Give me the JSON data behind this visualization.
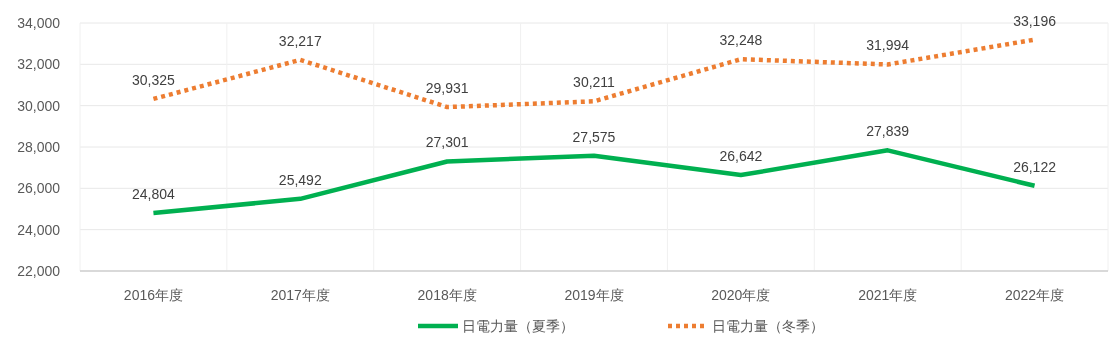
{
  "chart_data": {
    "type": "line",
    "categories": [
      "2016年度",
      "2017年度",
      "2018年度",
      "2019年度",
      "2020年度",
      "2021年度",
      "2022年度"
    ],
    "series": [
      {
        "name": "日電力量（夏季）",
        "color": "#00b050",
        "values": [
          24804,
          25492,
          27301,
          27575,
          26642,
          27839,
          26122
        ],
        "value_labels": [
          "24,804",
          "25,492",
          "27,301",
          "27,575",
          "26,642",
          "27,839",
          "26,122"
        ],
        "line_style": "solid"
      },
      {
        "name": "日電力量（冬季）",
        "color": "#ed7d31",
        "values": [
          30325,
          32217,
          29931,
          30211,
          32248,
          31994,
          33196
        ],
        "value_labels": [
          "30,325",
          "32,217",
          "29,931",
          "30,211",
          "32,248",
          "31,994",
          "33,196"
        ],
        "line_style": "dotted"
      }
    ],
    "ylim": [
      22000,
      34000
    ],
    "yticks": [
      {
        "value": 22000,
        "label": "22,000"
      },
      {
        "value": 24000,
        "label": "24,000"
      },
      {
        "value": 26000,
        "label": "26,000"
      },
      {
        "value": 28000,
        "label": "28,000"
      },
      {
        "value": 30000,
        "label": "30,000"
      },
      {
        "value": 32000,
        "label": "32,000"
      },
      {
        "value": 34000,
        "label": "34,000"
      }
    ],
    "grid": true,
    "legend": "bottom",
    "marker": "none"
  }
}
